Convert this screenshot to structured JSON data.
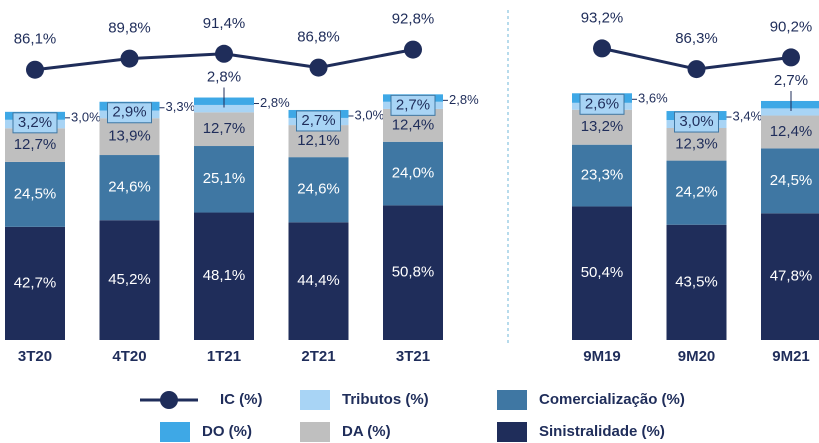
{
  "chart_data": {
    "type": "bar",
    "stacked": true,
    "categories": [
      "3T20",
      "4T20",
      "1T21",
      "2T21",
      "3T21",
      null,
      "9M19",
      "9M20",
      "9M21"
    ],
    "series": [
      {
        "name": "Sinistralidade (%)",
        "color": "#1f2d5a",
        "values": [
          42.7,
          45.2,
          48.1,
          44.4,
          50.8,
          null,
          50.4,
          43.5,
          47.8
        ],
        "value_labels": [
          "42,7%",
          "45,2%",
          "48,1%",
          "44,4%",
          "50,8%",
          null,
          "50,4%",
          "43,5%",
          "47,8%"
        ]
      },
      {
        "name": "Comercialização (%)",
        "color": "#3f77a3",
        "values": [
          24.5,
          24.6,
          25.1,
          24.6,
          24.0,
          null,
          23.3,
          24.2,
          24.5
        ],
        "value_labels": [
          "24,5%",
          "24,6%",
          "25,1%",
          "24,6%",
          "24,0%",
          null,
          "23,3%",
          "24,2%",
          "24,5%"
        ]
      },
      {
        "name": "DA (%)",
        "color": "#bfbfbf",
        "values": [
          12.7,
          13.9,
          12.7,
          12.1,
          12.4,
          null,
          13.2,
          12.3,
          12.4
        ],
        "value_labels": [
          "12,7%",
          "13,9%",
          "12,7%",
          "12,1%",
          "12,4%",
          null,
          "13,2%",
          "12,3%",
          "12,4%"
        ]
      },
      {
        "name": "Tributos (%)",
        "color": "#a8d4f5",
        "values": [
          3.2,
          2.9,
          2.8,
          2.7,
          2.7,
          null,
          2.6,
          3.0,
          2.7
        ],
        "value_labels": [
          "3,2%",
          "2,9%",
          "2,8%",
          "2,7%",
          "2,7%",
          null,
          "2,6%",
          "3,0%",
          "2,7%"
        ]
      },
      {
        "name": "DO (%)",
        "color": "#3ea8e6",
        "values": [
          3.0,
          3.3,
          2.8,
          3.0,
          2.8,
          null,
          3.6,
          3.4,
          2.8
        ],
        "value_labels": [
          "3,0%",
          "3,3%",
          "2,8%",
          "3,0%",
          "2,8%",
          null,
          "3,6%",
          "3,4%",
          null
        ]
      },
      {
        "name": "IC (%)",
        "type": "line",
        "color": "#1f2d5a",
        "values": [
          86.1,
          89.8,
          91.4,
          86.8,
          92.8,
          null,
          93.2,
          86.3,
          90.2
        ],
        "value_labels": [
          "86,1%",
          "89,8%",
          "91,4%",
          "86,8%",
          "92,8%",
          null,
          "93,2%",
          "86,3%",
          "90,2%"
        ]
      }
    ]
  }
}
